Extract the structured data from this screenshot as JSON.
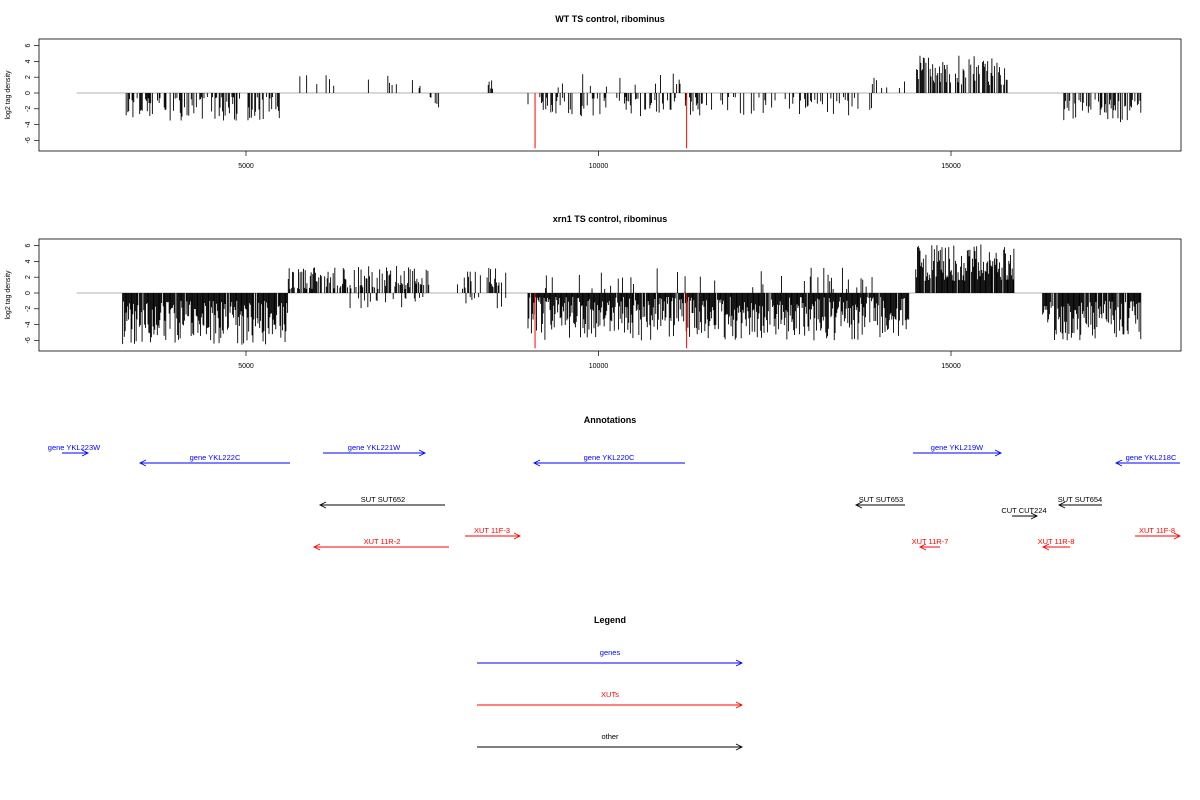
{
  "colors": {
    "genes": "#0000ff",
    "xuts": "#ff0000",
    "other": "#000000",
    "highlight": "#ff0000",
    "axis": "#000000",
    "baseline": "#999999"
  },
  "chart_data": [
    {
      "type": "bar",
      "title": "WT TS control, ribominus",
      "ylabel": "log2 tag density",
      "xlim": [
        2200,
        18100
      ],
      "ylim": [
        -7,
        7
      ],
      "yticks": [
        "6",
        "4",
        "2",
        "0",
        "-2",
        "-4",
        "-6"
      ],
      "xticks": [
        "5000",
        "10000",
        "15000"
      ],
      "highlight_positions": [
        9100,
        11250
      ],
      "highlight_values": [
        -7,
        -7
      ],
      "segments": [
        {
          "from": 3300,
          "to": 5500,
          "sign": -1,
          "min": 0.5,
          "max": 3.5,
          "density": 0.45
        },
        {
          "from": 5500,
          "to": 7500,
          "sign": 1,
          "min": 0.5,
          "max": 2.4,
          "density": 0.08
        },
        {
          "from": 7600,
          "to": 7800,
          "sign": -1,
          "min": 0.5,
          "max": 2.0,
          "density": 0.2
        },
        {
          "from": 8400,
          "to": 8500,
          "sign": 1,
          "min": 0.5,
          "max": 1.6,
          "density": 0.3
        },
        {
          "from": 9000,
          "to": 11400,
          "sign": -1,
          "min": 0.5,
          "max": 3.0,
          "density": 0.35
        },
        {
          "from": 9200,
          "to": 11500,
          "sign": 1,
          "min": 0.5,
          "max": 2.6,
          "density": 0.06
        },
        {
          "from": 11400,
          "to": 13900,
          "sign": -1,
          "min": 0.5,
          "max": 3.0,
          "density": 0.25
        },
        {
          "from": 13800,
          "to": 14400,
          "sign": 1,
          "min": 0.5,
          "max": 2.0,
          "density": 0.1
        },
        {
          "from": 14500,
          "to": 15800,
          "sign": 1,
          "min": 1.0,
          "max": 4.8,
          "density": 0.6
        },
        {
          "from": 16600,
          "to": 17700,
          "sign": -1,
          "min": 0.8,
          "max": 3.8,
          "density": 0.55
        }
      ]
    },
    {
      "type": "bar",
      "title": "xrn1 TS control, ribominus",
      "ylabel": "log2 tag density",
      "xlim": [
        2200,
        18100
      ],
      "ylim": [
        -7,
        7
      ],
      "yticks": [
        "6",
        "4",
        "2",
        "0",
        "-2",
        "-4",
        "-6"
      ],
      "xticks": [
        "5000",
        "10000",
        "15000"
      ],
      "highlight_positions": [
        9100,
        11250
      ],
      "highlight_values": [
        -7,
        -7
      ],
      "segments": [
        {
          "from": 3250,
          "to": 5600,
          "sign": -1,
          "min": 1.0,
          "max": 6.6,
          "density": 0.95
        },
        {
          "from": 5600,
          "to": 7600,
          "sign": 1,
          "min": 0.5,
          "max": 3.6,
          "density": 0.55
        },
        {
          "from": 6200,
          "to": 7600,
          "sign": -1,
          "min": 0.5,
          "max": 2.0,
          "density": 0.15
        },
        {
          "from": 8000,
          "to": 8700,
          "sign": 1,
          "min": 0.5,
          "max": 3.2,
          "density": 0.3
        },
        {
          "from": 8000,
          "to": 8700,
          "sign": -1,
          "min": 0.5,
          "max": 2.0,
          "density": 0.15
        },
        {
          "from": 9000,
          "to": 14400,
          "sign": -1,
          "min": 0.5,
          "max": 6.0,
          "density": 0.95
        },
        {
          "from": 9200,
          "to": 14000,
          "sign": 1,
          "min": 0.5,
          "max": 3.5,
          "density": 0.12
        },
        {
          "from": 14500,
          "to": 15900,
          "sign": 1,
          "min": 1.5,
          "max": 6.3,
          "density": 0.95
        },
        {
          "from": 16300,
          "to": 17700,
          "sign": -1,
          "min": 1.0,
          "max": 6.0,
          "density": 0.9
        }
      ]
    }
  ],
  "annotations": {
    "title": "Annotations",
    "items": [
      {
        "label": "gene YKL223W",
        "color": "genes",
        "dir": 1
      },
      {
        "label": "gene YKL222C",
        "color": "genes",
        "dir": -1
      },
      {
        "label": "gene YKL221W",
        "color": "genes",
        "dir": 1
      },
      {
        "label": "gene YKL220C",
        "color": "genes",
        "dir": -1
      },
      {
        "label": "gene YKL219W",
        "color": "genes",
        "dir": 1
      },
      {
        "label": "gene YKL218C",
        "color": "genes",
        "dir": -1
      },
      {
        "label": "SUT SUT652",
        "color": "other",
        "dir": -1
      },
      {
        "label": "SUT SUT653",
        "color": "other",
        "dir": -1
      },
      {
        "label": "SUT SUT654",
        "color": "other",
        "dir": -1
      },
      {
        "label": "CUT CUT224",
        "color": "other",
        "dir": 1
      },
      {
        "label": "XUT 11F-3",
        "color": "xuts",
        "dir": 1
      },
      {
        "label": "XUT 11R-2",
        "color": "xuts",
        "dir": -1
      },
      {
        "label": "XUT 11R-7",
        "color": "xuts",
        "dir": -1
      },
      {
        "label": "XUT 11R-8",
        "color": "xuts",
        "dir": -1
      },
      {
        "label": "XUT 11F-8",
        "color": "xuts",
        "dir": 1
      }
    ]
  },
  "legend": {
    "title": "Legend",
    "items": [
      {
        "label": "genes",
        "color": "genes"
      },
      {
        "label": "XUTs",
        "color": "xuts"
      },
      {
        "label": "other",
        "color": "other"
      }
    ]
  }
}
